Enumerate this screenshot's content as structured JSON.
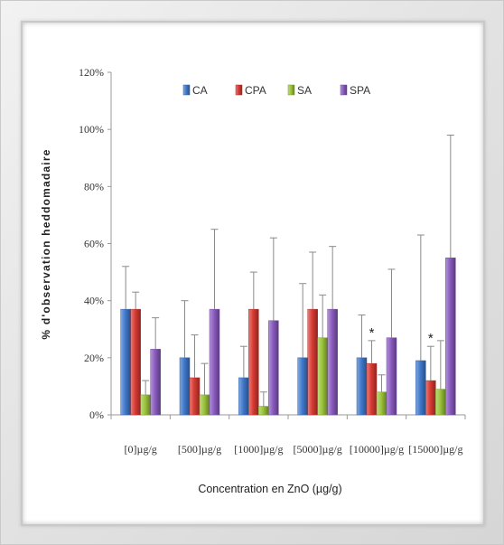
{
  "chart_data": {
    "type": "bar",
    "title": "",
    "xlabel": "Concentration en ZnO (µg/g)",
    "ylabel": "% d'observation heddomadaire",
    "ylim": [
      0,
      1.2
    ],
    "yticks": [
      0,
      0.2,
      0.4,
      0.6,
      0.8,
      1.0,
      1.2
    ],
    "ytick_labels": [
      "0%",
      "20%",
      "40%",
      "60%",
      "80%",
      "100%",
      "120%"
    ],
    "categories": [
      "[0]µg/g",
      "[500]µg/g",
      "[1000]µg/g",
      "[5000]µg/g",
      "[10000]µg/g",
      "[15000]µg/g"
    ],
    "legend_position": "top",
    "grid": false,
    "series": [
      {
        "name": "CA",
        "color": "#3f79cc",
        "values": [
          0.37,
          0.2,
          0.13,
          0.2,
          0.2,
          0.19
        ],
        "errors": [
          0.15,
          0.2,
          0.11,
          0.26,
          0.15,
          0.44
        ]
      },
      {
        "name": "CPA",
        "color": "#d93a33",
        "values": [
          0.37,
          0.13,
          0.37,
          0.37,
          0.18,
          0.12
        ],
        "errors": [
          0.06,
          0.15,
          0.13,
          0.2,
          0.08,
          0.12
        ]
      },
      {
        "name": "SA",
        "color": "#9bc43b",
        "values": [
          0.07,
          0.07,
          0.03,
          0.27,
          0.08,
          0.09
        ],
        "errors": [
          0.05,
          0.11,
          0.05,
          0.15,
          0.06,
          0.17
        ]
      },
      {
        "name": "SPA",
        "color": "#8a5bbf",
        "values": [
          0.23,
          0.37,
          0.33,
          0.37,
          0.27,
          0.55
        ],
        "errors": [
          0.11,
          0.28,
          0.29,
          0.22,
          0.24,
          0.43
        ]
      }
    ],
    "annotations": [
      {
        "text": "*",
        "category_index": 4,
        "series_index": 1
      },
      {
        "text": "*",
        "category_index": 5,
        "series_index": 1
      }
    ]
  }
}
